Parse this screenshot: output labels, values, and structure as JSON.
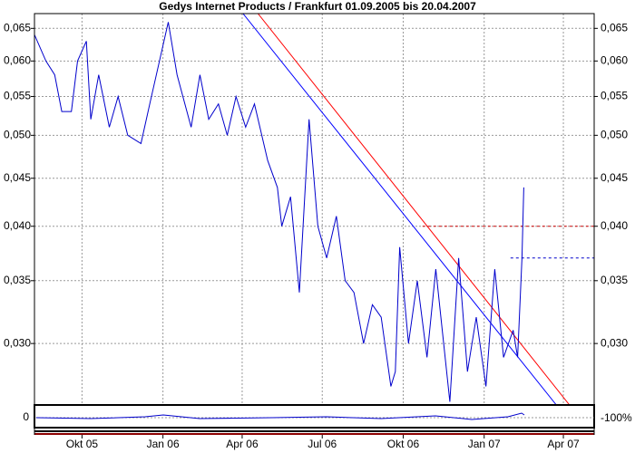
{
  "chart_data": {
    "type": "line",
    "title": "Gedys Internet Products / Frankfurt 01.09.2005 bis 20.04.2007",
    "log_scale": true,
    "grid": true,
    "xlim": [
      "2005-08-08",
      "2007-05-06"
    ],
    "xticks": [
      {
        "value": "2005-10-01",
        "label": "Okt 05"
      },
      {
        "value": "2006-01-01",
        "label": "Jan 06"
      },
      {
        "value": "2006-04-01",
        "label": "Apr 06"
      },
      {
        "value": "2006-07-01",
        "label": "Jul 06"
      },
      {
        "value": "2006-10-01",
        "label": "Okt 06"
      },
      {
        "value": "2007-01-01",
        "label": "Jan 07"
      },
      {
        "value": "2007-04-01",
        "label": "Apr 07"
      }
    ],
    "ylim": [
      0.0258,
      0.0674
    ],
    "yticks": [
      {
        "value": 0.03,
        "label": "0,030"
      },
      {
        "value": 0.035,
        "label": "0,035"
      },
      {
        "value": 0.04,
        "label": "0,040"
      },
      {
        "value": 0.045,
        "label": "0,045"
      },
      {
        "value": 0.05,
        "label": "0,050"
      },
      {
        "value": 0.055,
        "label": "0,055"
      },
      {
        "value": 0.06,
        "label": "0,060"
      },
      {
        "value": 0.065,
        "label": "0,065"
      }
    ],
    "series": [
      {
        "color": "#0000cc",
        "x": [
          "2005-08-08",
          "2005-08-21",
          "2005-08-31",
          "2005-09-08",
          "2005-09-19",
          "2005-09-26",
          "2005-10-06",
          "2005-10-11",
          "2005-10-20",
          "2005-11-01",
          "2005-11-11",
          "2005-11-22",
          "2005-12-07",
          "2005-12-17",
          "2005-12-28",
          "2006-01-07",
          "2006-01-17",
          "2006-02-02",
          "2006-02-12",
          "2006-02-22",
          "2006-03-05",
          "2006-03-15",
          "2006-03-25",
          "2006-04-05",
          "2006-04-15",
          "2006-04-30",
          "2006-05-11",
          "2006-05-16",
          "2006-05-26",
          "2006-06-05",
          "2006-06-16",
          "2006-06-26",
          "2006-07-06",
          "2006-07-17",
          "2006-07-27",
          "2006-08-06",
          "2006-08-17",
          "2006-08-27",
          "2006-09-06",
          "2006-09-17",
          "2006-09-22",
          "2006-09-27",
          "2006-10-07",
          "2006-10-17",
          "2006-10-28",
          "2006-11-07",
          "2006-11-23",
          "2006-12-03",
          "2006-12-13",
          "2006-12-23",
          "2007-01-03",
          "2007-01-13",
          "2007-01-23",
          "2007-02-03",
          "2007-02-08",
          "2007-02-13",
          "2007-02-15"
        ],
        "values": [
          0.064,
          0.06,
          0.058,
          0.053,
          0.053,
          0.06,
          0.063,
          0.052,
          0.058,
          0.051,
          0.055,
          0.05,
          0.049,
          0.054,
          0.06,
          0.066,
          0.058,
          0.051,
          0.058,
          0.052,
          0.054,
          0.05,
          0.055,
          0.051,
          0.054,
          0.047,
          0.044,
          0.04,
          0.043,
          0.034,
          0.052,
          0.04,
          0.037,
          0.041,
          0.035,
          0.034,
          0.03,
          0.033,
          0.032,
          0.027,
          0.028,
          0.038,
          0.03,
          0.035,
          0.029,
          0.036,
          0.026,
          0.037,
          0.028,
          0.032,
          0.027,
          0.036,
          0.029,
          0.031,
          0.029,
          0.037,
          0.044
        ]
      }
    ],
    "trendlines": [
      {
        "color": "#0000ff",
        "dashed": false,
        "x": [
          "2006-04-02",
          "2007-03-24"
        ],
        "values": [
          0.0674,
          0.0258
        ]
      },
      {
        "color": "#ff0000",
        "dashed": false,
        "x": [
          "2006-04-19",
          "2007-04-08"
        ],
        "values": [
          0.0674,
          0.0258
        ]
      },
      {
        "color": "#cc0000",
        "dashed": true,
        "x": [
          "2006-10-23",
          "2007-05-06"
        ],
        "values": [
          0.04,
          0.04
        ]
      },
      {
        "color": "#0000cc",
        "dashed": true,
        "x": [
          "2007-01-31",
          "2007-05-06"
        ],
        "values": [
          0.037,
          0.037
        ]
      }
    ],
    "indicator": {
      "yticks": [
        0
      ],
      "y2ticks": [
        {
          "value": -100,
          "label": "-100%"
        }
      ]
    }
  }
}
